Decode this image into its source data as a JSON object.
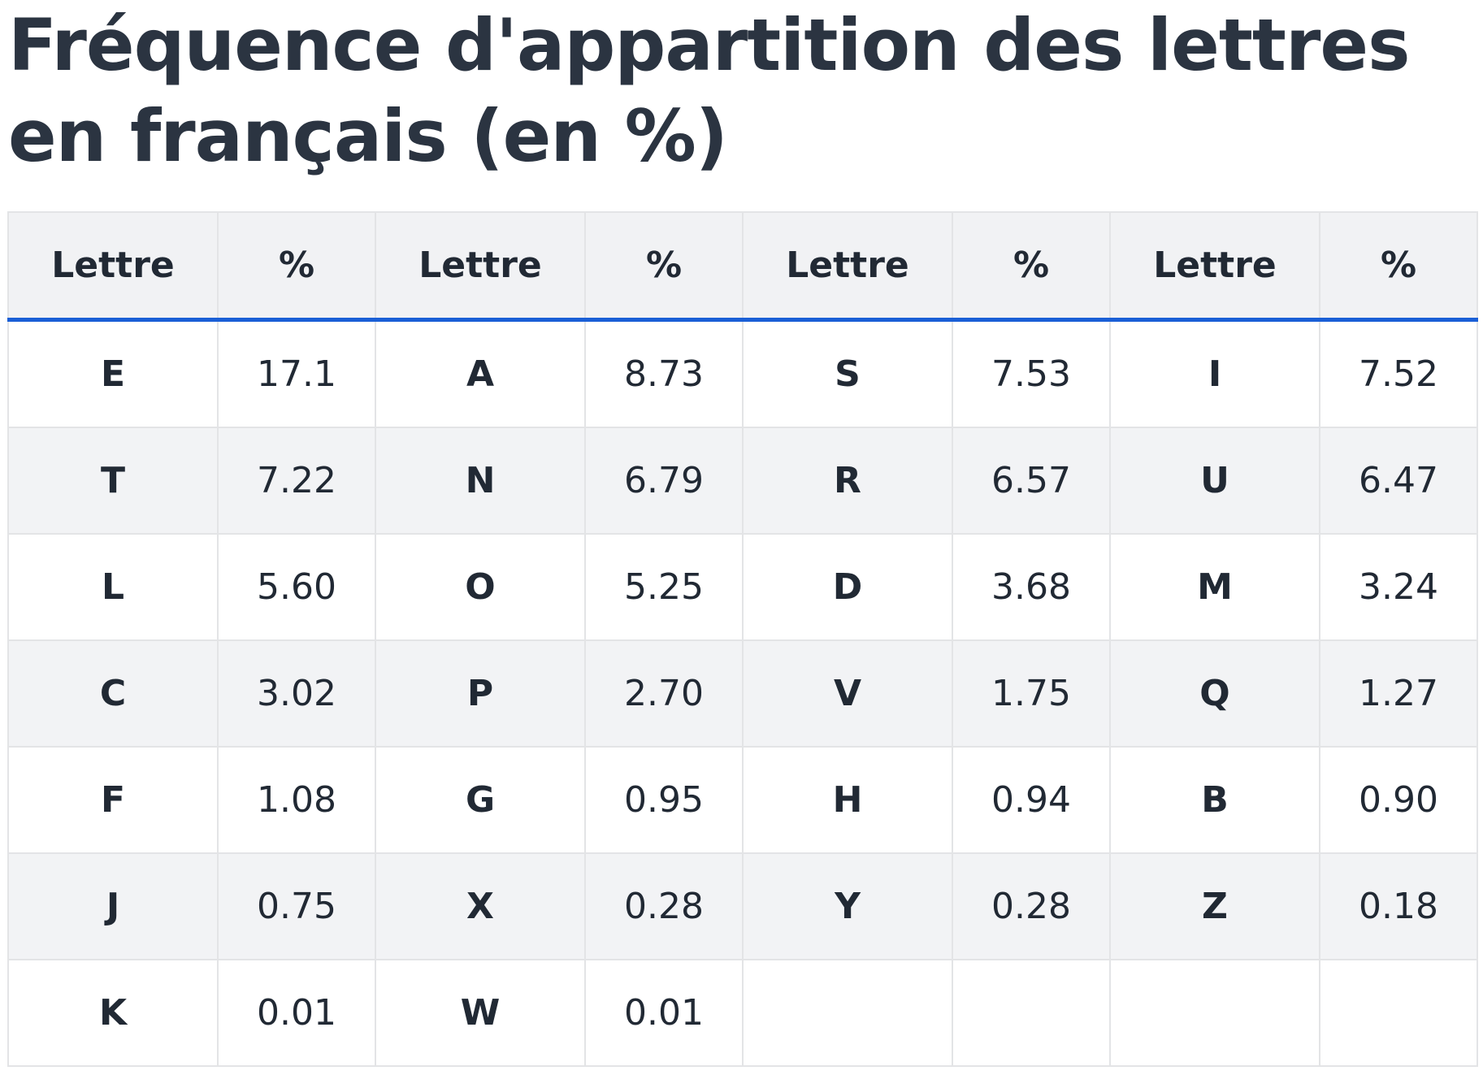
{
  "header": {
    "title": "Fréquence d'appartition des lettres en français (en %)"
  },
  "table": {
    "columns": [
      "Lettre",
      "%",
      "Lettre",
      "%",
      "Lettre",
      "%",
      "Lettre",
      "%"
    ],
    "rows": [
      [
        "E",
        "17.1",
        "A",
        "8.73",
        "S",
        "7.53",
        "I",
        "7.52"
      ],
      [
        "T",
        "7.22",
        "N",
        "6.79",
        "R",
        "6.57",
        "U",
        "6.47"
      ],
      [
        "L",
        "5.60",
        "O",
        "5.25",
        "D",
        "3.68",
        "M",
        "3.24"
      ],
      [
        "C",
        "3.02",
        "P",
        "2.70",
        "V",
        "1.75",
        "Q",
        "1.27"
      ],
      [
        "F",
        "1.08",
        "G",
        "0.95",
        "H",
        "0.94",
        "B",
        "0.90"
      ],
      [
        "J",
        "0.75",
        "X",
        "0.28",
        "Y",
        "0.28",
        "Z",
        "0.18"
      ],
      [
        "K",
        "0.01",
        "W",
        "0.01"
      ]
    ]
  }
}
